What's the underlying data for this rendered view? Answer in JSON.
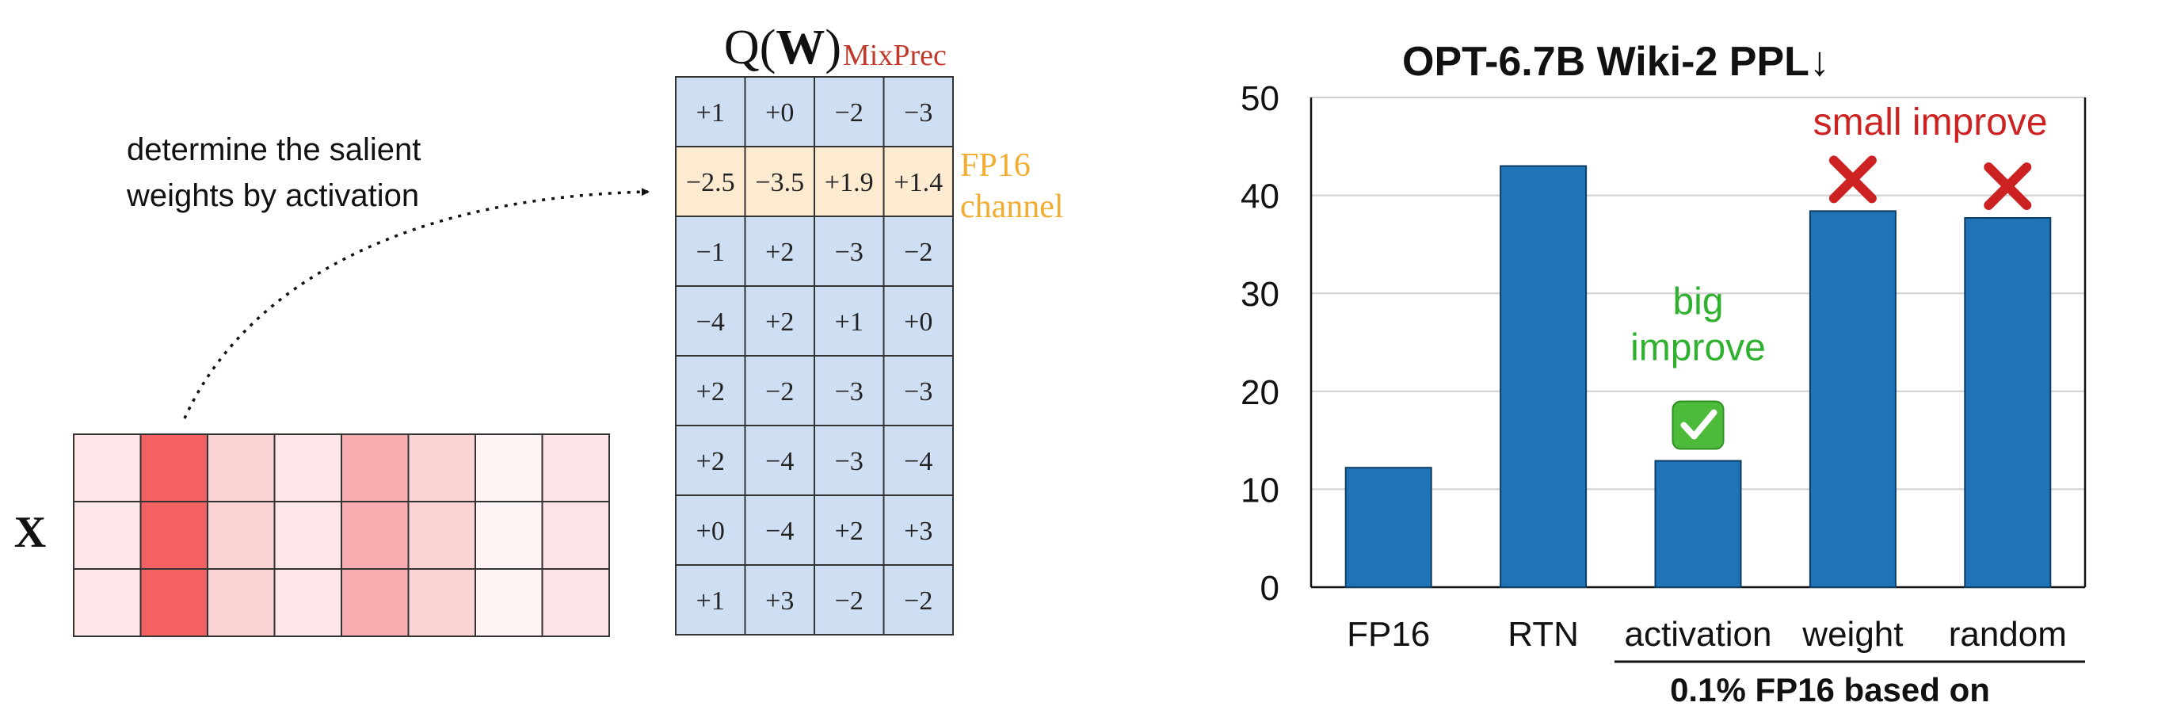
{
  "left": {
    "x_label": "X",
    "annotation_lines": [
      "determine the salient",
      "weights by activation"
    ],
    "activation_colors": [
      "#fde6e8",
      "#f36163",
      "#fbd3d5",
      "#fde6e8",
      "#f8adb1",
      "#fbd3d5",
      "#fef4f4",
      "#fde3e5"
    ],
    "salient_column": 1
  },
  "matrix": {
    "title_q": "Q(",
    "title_w": "W",
    "title_close": ")",
    "title_sub": "MixPrec",
    "fp16_row": 1,
    "fp16_label_lines": [
      "FP16",
      "channel"
    ],
    "rows": [
      [
        "+1",
        "+0",
        "−2",
        "−3"
      ],
      [
        "−2.5",
        "−3.5",
        "+1.9",
        "+1.4"
      ],
      [
        "−1",
        "+2",
        "−3",
        "−2"
      ],
      [
        "−4",
        "+2",
        "+1",
        "+0"
      ],
      [
        "+2",
        "−2",
        "−3",
        "−3"
      ],
      [
        "+2",
        "−4",
        "−3",
        "−4"
      ],
      [
        "+0",
        "−4",
        "+2",
        "+3"
      ],
      [
        "+1",
        "+3",
        "−2",
        "−2"
      ]
    ],
    "colors": {
      "cell": "#cfdff3",
      "fp16": "#fcebd0",
      "fp16_text": "#f2ac31",
      "sub": "#c0392b"
    }
  },
  "chart_data": {
    "type": "bar",
    "title": "OPT-6.7B Wiki-2 PPL↓",
    "categories": [
      "FP16",
      "RTN",
      "activation",
      "weight",
      "random"
    ],
    "values": [
      12.2,
      43.0,
      12.9,
      38.4,
      37.7
    ],
    "ylim": [
      0,
      50
    ],
    "yticks": [
      0,
      10,
      20,
      30,
      40,
      50
    ],
    "grid": true,
    "bar_color": "#1f73b7",
    "group_label": "0.1% FP16 based on",
    "annotations": [
      {
        "text_lines": [
          "big",
          "improve"
        ],
        "category": "activation",
        "color": "#2fb12f",
        "marker": "✅"
      },
      {
        "text_lines": [
          "small improve"
        ],
        "category": "weight",
        "color": "#cc2222",
        "marker": "✖"
      },
      {
        "text_lines": [],
        "category": "random",
        "color": "#cc2222",
        "marker": "✖"
      }
    ]
  }
}
